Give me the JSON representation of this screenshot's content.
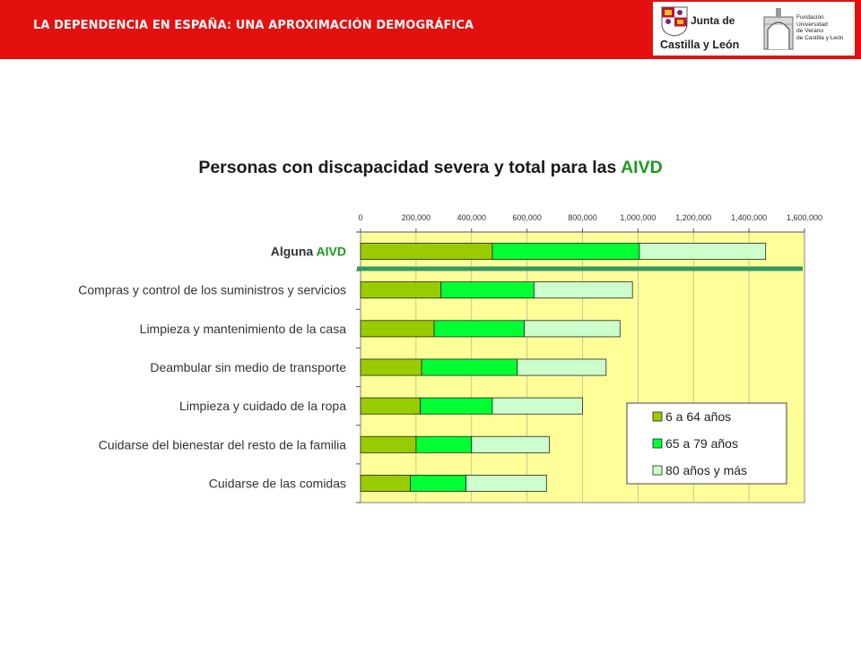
{
  "header": {
    "title": "LA DEPENDENCIA EN ESPAÑA: UNA APROXIMACIÓN DEMOGRÁFICA",
    "logo_jcyl_line1": "Junta de",
    "logo_jcyl_line2": "Castilla y León",
    "logo_fund_lines": [
      "Fundación",
      "Universidad",
      "de Verano",
      "de Castilla y León"
    ]
  },
  "colors": {
    "banner": "#e3100f",
    "plot_bg": "#ffff99",
    "series": [
      "#99cc00",
      "#00ff33",
      "#ccffcc"
    ],
    "highlight_line": "#339966",
    "accent_text": "#1a9a1a"
  },
  "chart_data": {
    "type": "bar",
    "orientation": "horizontal",
    "stacked": true,
    "title_main": "Personas con discapacidad severa y total para las",
    "title_highlight": "AIVD",
    "categories": [
      "Alguna AIVD",
      "Compras y control de los suministros y servicios",
      "Limpieza y mantenimiento de la casa",
      "Deambular sin medio de transporte",
      "Limpieza y cuidado de la ropa",
      "Cuidarse del bienestar del resto de la familia",
      "Cuidarse de las comidas"
    ],
    "category_parts": [
      [
        "Alguna",
        "AIVD"
      ]
    ],
    "series": [
      {
        "name": "6 a 64 años",
        "values": [
          475000,
          290000,
          265000,
          220000,
          215000,
          200000,
          180000
        ]
      },
      {
        "name": "65 a 79 años",
        "values": [
          530000,
          335000,
          325000,
          345000,
          260000,
          200000,
          200000
        ]
      },
      {
        "name": "80 años y más",
        "values": [
          455000,
          355000,
          345000,
          320000,
          325000,
          280000,
          290000
        ]
      }
    ],
    "xlim": [
      0,
      1600000
    ],
    "xticks": [
      0,
      200000,
      400000,
      600000,
      800000,
      1000000,
      1200000,
      1400000,
      1600000
    ],
    "xtick_labels": [
      "0",
      "200,000",
      "400,000",
      "600,000",
      "800,000",
      "1,000,000",
      "1,200,000",
      "1,400,000",
      "1,600,000"
    ],
    "xaxis_position": "top",
    "grid": true,
    "legend_position": "bottom-right",
    "highlight": "line separating Alguna AIVD from the detailed activities"
  }
}
